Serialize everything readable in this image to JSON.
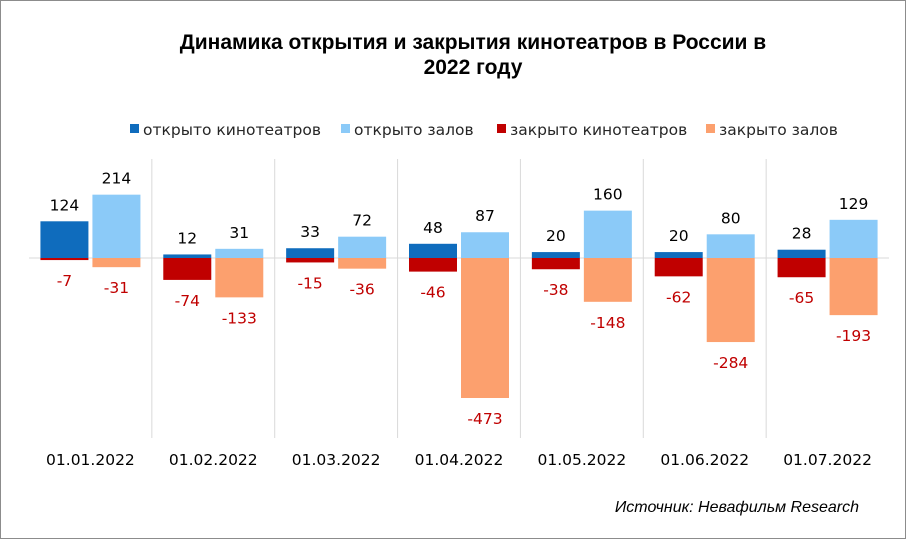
{
  "chart_data": {
    "type": "bar",
    "title": "Динамика открытия и закрытия кинотеатров в России в 2022 году",
    "title_lines": [
      "Динамика открытия и закрытия кинотеатров в России в",
      "2022 году"
    ],
    "categories": [
      "01.01.2022",
      "01.02.2022",
      "01.03.2022",
      "01.04.2022",
      "01.05.2022",
      "01.06.2022",
      "01.07.2022"
    ],
    "series": [
      {
        "name": "открыто кинотеатров",
        "color": "#0f6cbd",
        "values": [
          124,
          12,
          33,
          48,
          20,
          20,
          28
        ]
      },
      {
        "name": "открыто залов",
        "color": "#8bcaf8",
        "values": [
          214,
          31,
          72,
          87,
          160,
          80,
          129
        ]
      },
      {
        "name": "закрыто кинотеатров",
        "color": "#c00000",
        "values": [
          -7,
          -74,
          -15,
          -46,
          -38,
          -62,
          -65
        ]
      },
      {
        "name": "закрыто залов",
        "color": "#fca06e",
        "values": [
          -31,
          -133,
          -36,
          -473,
          -148,
          -284,
          -193
        ]
      }
    ],
    "ylim": [
      -600,
      300
    ],
    "legend_position": "top",
    "grid": false,
    "positive_label_color": "#000000",
    "negative_label_color": "#c00000",
    "source": "Источник: Невафильм Research"
  }
}
